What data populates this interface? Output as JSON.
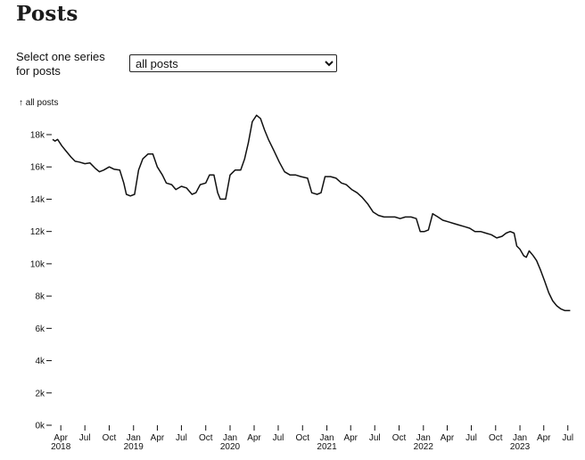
{
  "page": {
    "title": "Posts",
    "series_label": "Select one series for posts",
    "select": {
      "selected": "all posts",
      "options": [
        "all posts"
      ]
    }
  },
  "chart_data": {
    "type": "line",
    "ylabel": "↑ all posts",
    "ylim": [
      0,
      18000
    ],
    "xlim": [
      "2018-03-01",
      "2023-07-12"
    ],
    "y_ticks": [
      {
        "value": 0,
        "label": "0k"
      },
      {
        "value": 2000,
        "label": "2k"
      },
      {
        "value": 4000,
        "label": "4k"
      },
      {
        "value": 6000,
        "label": "6k"
      },
      {
        "value": 8000,
        "label": "8k"
      },
      {
        "value": 10000,
        "label": "10k"
      },
      {
        "value": 12000,
        "label": "12k"
      },
      {
        "value": 14000,
        "label": "14k"
      },
      {
        "value": 16000,
        "label": "16k"
      },
      {
        "value": 18000,
        "label": "18k"
      }
    ],
    "x_ticks": [
      {
        "date": "2018-04-01",
        "label": "Apr",
        "year": "2018"
      },
      {
        "date": "2018-07-01",
        "label": "Jul"
      },
      {
        "date": "2018-10-01",
        "label": "Oct"
      },
      {
        "date": "2019-01-01",
        "label": "Jan",
        "year": "2019"
      },
      {
        "date": "2019-04-01",
        "label": "Apr"
      },
      {
        "date": "2019-07-01",
        "label": "Jul"
      },
      {
        "date": "2019-10-01",
        "label": "Oct"
      },
      {
        "date": "2020-01-01",
        "label": "Jan",
        "year": "2020"
      },
      {
        "date": "2020-04-01",
        "label": "Apr"
      },
      {
        "date": "2020-07-01",
        "label": "Jul"
      },
      {
        "date": "2020-10-01",
        "label": "Oct"
      },
      {
        "date": "2021-01-01",
        "label": "Jan",
        "year": "2021"
      },
      {
        "date": "2021-04-01",
        "label": "Apr"
      },
      {
        "date": "2021-07-01",
        "label": "Jul"
      },
      {
        "date": "2021-10-01",
        "label": "Oct"
      },
      {
        "date": "2022-01-01",
        "label": "Jan",
        "year": "2022"
      },
      {
        "date": "2022-04-01",
        "label": "Apr"
      },
      {
        "date": "2022-07-01",
        "label": "Jul"
      },
      {
        "date": "2022-10-01",
        "label": "Oct"
      },
      {
        "date": "2023-01-01",
        "label": "Jan",
        "year": "2023"
      },
      {
        "date": "2023-04-01",
        "label": "Apr"
      },
      {
        "date": "2023-07-01",
        "label": "Jul"
      }
    ],
    "grid": false,
    "line_color": "#111111",
    "series": [
      {
        "points": [
          [
            "2018-03-01",
            17700
          ],
          [
            "2018-03-10",
            17600
          ],
          [
            "2018-03-20",
            17700
          ],
          [
            "2018-04-05",
            17300
          ],
          [
            "2018-04-20",
            17000
          ],
          [
            "2018-05-10",
            16600
          ],
          [
            "2018-05-25",
            16350
          ],
          [
            "2018-06-10",
            16300
          ],
          [
            "2018-07-01",
            16200
          ],
          [
            "2018-07-20",
            16250
          ],
          [
            "2018-08-10",
            15900
          ],
          [
            "2018-08-25",
            15700
          ],
          [
            "2018-09-10",
            15800
          ],
          [
            "2018-10-01",
            16000
          ],
          [
            "2018-10-20",
            15850
          ],
          [
            "2018-11-10",
            15800
          ],
          [
            "2018-11-25",
            15000
          ],
          [
            "2018-12-05",
            14300
          ],
          [
            "2018-12-20",
            14200
          ],
          [
            "2019-01-05",
            14300
          ],
          [
            "2019-01-20",
            15800
          ],
          [
            "2019-02-05",
            16500
          ],
          [
            "2019-02-25",
            16800
          ],
          [
            "2019-03-15",
            16800
          ],
          [
            "2019-04-01",
            16000
          ],
          [
            "2019-04-20",
            15500
          ],
          [
            "2019-05-05",
            15000
          ],
          [
            "2019-05-25",
            14900
          ],
          [
            "2019-06-10",
            14600
          ],
          [
            "2019-07-01",
            14800
          ],
          [
            "2019-07-20",
            14700
          ],
          [
            "2019-08-10",
            14300
          ],
          [
            "2019-08-25",
            14400
          ],
          [
            "2019-09-10",
            14900
          ],
          [
            "2019-10-01",
            15000
          ],
          [
            "2019-10-15",
            15500
          ],
          [
            "2019-11-01",
            15500
          ],
          [
            "2019-11-15",
            14400
          ],
          [
            "2019-11-25",
            14000
          ],
          [
            "2019-12-15",
            14000
          ],
          [
            "2020-01-01",
            15500
          ],
          [
            "2020-01-20",
            15800
          ],
          [
            "2020-02-10",
            15800
          ],
          [
            "2020-02-25",
            16500
          ],
          [
            "2020-03-10",
            17500
          ],
          [
            "2020-03-25",
            18800
          ],
          [
            "2020-04-10",
            19200
          ],
          [
            "2020-04-25",
            19000
          ],
          [
            "2020-05-10",
            18300
          ],
          [
            "2020-05-25",
            17700
          ],
          [
            "2020-06-15",
            17000
          ],
          [
            "2020-07-05",
            16300
          ],
          [
            "2020-07-25",
            15700
          ],
          [
            "2020-08-15",
            15500
          ],
          [
            "2020-09-05",
            15500
          ],
          [
            "2020-09-25",
            15400
          ],
          [
            "2020-10-20",
            15300
          ],
          [
            "2020-11-05",
            14400
          ],
          [
            "2020-11-25",
            14300
          ],
          [
            "2020-12-10",
            14400
          ],
          [
            "2020-12-25",
            15400
          ],
          [
            "2021-01-15",
            15400
          ],
          [
            "2021-02-05",
            15300
          ],
          [
            "2021-02-25",
            15000
          ],
          [
            "2021-03-15",
            14900
          ],
          [
            "2021-04-05",
            14600
          ],
          [
            "2021-04-25",
            14400
          ],
          [
            "2021-05-15",
            14100
          ],
          [
            "2021-06-05",
            13700
          ],
          [
            "2021-06-25",
            13200
          ],
          [
            "2021-07-15",
            13000
          ],
          [
            "2021-08-05",
            12900
          ],
          [
            "2021-08-25",
            12900
          ],
          [
            "2021-09-15",
            12900
          ],
          [
            "2021-10-05",
            12800
          ],
          [
            "2021-10-25",
            12900
          ],
          [
            "2021-11-15",
            12900
          ],
          [
            "2021-12-05",
            12800
          ],
          [
            "2021-12-20",
            12000
          ],
          [
            "2022-01-05",
            12000
          ],
          [
            "2022-01-20",
            12100
          ],
          [
            "2022-02-05",
            13100
          ],
          [
            "2022-02-25",
            12900
          ],
          [
            "2022-03-15",
            12700
          ],
          [
            "2022-04-05",
            12600
          ],
          [
            "2022-04-25",
            12500
          ],
          [
            "2022-05-15",
            12400
          ],
          [
            "2022-06-05",
            12300
          ],
          [
            "2022-06-25",
            12200
          ],
          [
            "2022-07-15",
            12000
          ],
          [
            "2022-08-05",
            12000
          ],
          [
            "2022-08-25",
            11900
          ],
          [
            "2022-09-15",
            11800
          ],
          [
            "2022-10-05",
            11600
          ],
          [
            "2022-10-25",
            11700
          ],
          [
            "2022-11-10",
            11900
          ],
          [
            "2022-11-25",
            12000
          ],
          [
            "2022-12-10",
            11900
          ],
          [
            "2022-12-20",
            11100
          ],
          [
            "2023-01-01",
            10900
          ],
          [
            "2023-01-15",
            10500
          ],
          [
            "2023-01-25",
            10400
          ],
          [
            "2023-02-05",
            10800
          ],
          [
            "2023-02-20",
            10500
          ],
          [
            "2023-03-05",
            10200
          ],
          [
            "2023-03-20",
            9600
          ],
          [
            "2023-04-05",
            8900
          ],
          [
            "2023-04-20",
            8200
          ],
          [
            "2023-05-05",
            7700
          ],
          [
            "2023-05-20",
            7400
          ],
          [
            "2023-06-05",
            7200
          ],
          [
            "2023-06-20",
            7100
          ],
          [
            "2023-07-10",
            7100
          ]
        ]
      }
    ]
  }
}
